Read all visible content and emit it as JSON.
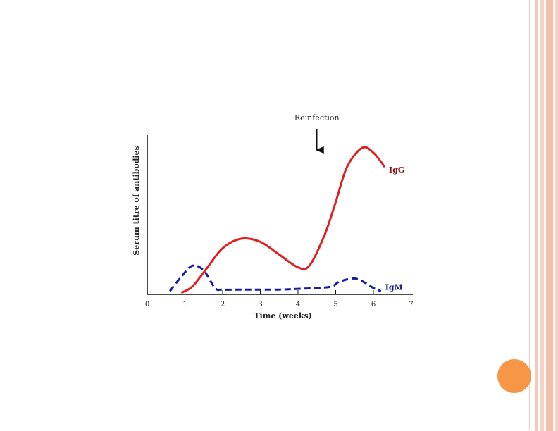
{
  "chart_data": {
    "type": "line",
    "xlabel": "Time (weeks)",
    "ylabel": "Serum titre of antibodies",
    "xlim": [
      0,
      7
    ],
    "ylim": [
      0,
      100
    ],
    "x_ticks": [
      "0",
      "1",
      "2",
      "3",
      "4",
      "5",
      "6",
      "7"
    ],
    "grid": false,
    "annotation": {
      "label": "Reinfection",
      "x": 4.5
    },
    "series": [
      {
        "name": "IgG",
        "color": "#e02020",
        "style": "solid",
        "points": [
          [
            0.9,
            1
          ],
          [
            1.2,
            5
          ],
          [
            1.6,
            17
          ],
          [
            2.0,
            29
          ],
          [
            2.5,
            35
          ],
          [
            3.0,
            33
          ],
          [
            3.5,
            25
          ],
          [
            4.0,
            17
          ],
          [
            4.3,
            18
          ],
          [
            4.7,
            37
          ],
          [
            5.0,
            58
          ],
          [
            5.3,
            80
          ],
          [
            5.7,
            92
          ],
          [
            6.0,
            89
          ],
          [
            6.3,
            80
          ]
        ]
      },
      {
        "name": "IgM",
        "color": "#1a1aa6",
        "style": "dashed",
        "points": [
          [
            0.6,
            2
          ],
          [
            0.9,
            11
          ],
          [
            1.2,
            18
          ],
          [
            1.5,
            15
          ],
          [
            1.8,
            4
          ],
          [
            2.0,
            3
          ],
          [
            2.5,
            3
          ],
          [
            3.0,
            3
          ],
          [
            3.5,
            3
          ],
          [
            4.0,
            3.5
          ],
          [
            4.5,
            4
          ],
          [
            4.9,
            5
          ],
          [
            5.1,
            8
          ],
          [
            5.5,
            10
          ],
          [
            5.8,
            7
          ],
          [
            6.0,
            4
          ],
          [
            6.2,
            2
          ]
        ]
      }
    ]
  }
}
